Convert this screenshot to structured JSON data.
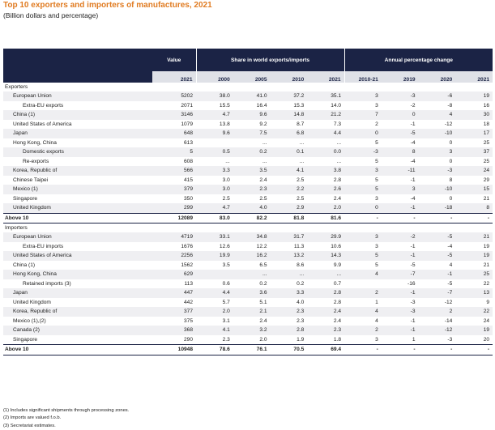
{
  "title": "Top 10 exporters and importers of manufactures, 2021",
  "subtitle": "(Billion dollars and percentage)",
  "header": {
    "value": "Value",
    "share": "Share in world exports/imports",
    "change": "Annual percentage change",
    "years": [
      "2021",
      "2000",
      "2005",
      "2010",
      "2021",
      "2010-21",
      "2019",
      "2020",
      "2021"
    ]
  },
  "sections": [
    {
      "title": "Exporters",
      "rows": [
        {
          "label": "European Union",
          "indent": 1,
          "cells": [
            "5202",
            "38.0",
            "41.0",
            "37.2",
            "35.1",
            "3",
            "-3",
            "-6",
            "19"
          ]
        },
        {
          "label": "Extra-EU exports",
          "indent": 2,
          "cells": [
            "2071",
            "15.5",
            "16.4",
            "15.3",
            "14.0",
            "3",
            "-2",
            "-8",
            "16"
          ]
        },
        {
          "label": "China (1)",
          "indent": 1,
          "cells": [
            "3146",
            "4.7",
            "9.6",
            "14.8",
            "21.2",
            "7",
            "0",
            "4",
            "30"
          ]
        },
        {
          "label": "United States of America",
          "indent": 1,
          "cells": [
            "1079",
            "13.8",
            "9.2",
            "8.7",
            "7.3",
            "2",
            "-1",
            "-12",
            "18"
          ]
        },
        {
          "label": "Japan",
          "indent": 1,
          "cells": [
            "648",
            "9.6",
            "7.5",
            "6.8",
            "4.4",
            "0",
            "-5",
            "-10",
            "17"
          ]
        },
        {
          "label": "Hong Kong, China",
          "indent": 1,
          "cells": [
            "613",
            "",
            "...",
            "...",
            "...",
            "5",
            "-4",
            "0",
            "25"
          ]
        },
        {
          "label": "Domestic exports",
          "indent": 2,
          "cells": [
            "5",
            "0.5",
            "0.2",
            "0.1",
            "0.0",
            "-3",
            "8",
            "3",
            "37"
          ]
        },
        {
          "label": "Re-exports",
          "indent": 2,
          "cells": [
            "608",
            "...",
            "...",
            "...",
            "...",
            "5",
            "-4",
            "0",
            "25"
          ]
        },
        {
          "label": "Korea, Republic of",
          "indent": 1,
          "cells": [
            "566",
            "3.3",
            "3.5",
            "4.1",
            "3.8",
            "3",
            "-11",
            "-3",
            "24"
          ]
        },
        {
          "label": "Chinese Taipei",
          "indent": 1,
          "cells": [
            "415",
            "3.0",
            "2.4",
            "2.5",
            "2.8",
            "5",
            "-1",
            "8",
            "29"
          ]
        },
        {
          "label": "Mexico (1)",
          "indent": 1,
          "cells": [
            "379",
            "3.0",
            "2.3",
            "2.2",
            "2.6",
            "5",
            "3",
            "-10",
            "15"
          ]
        },
        {
          "label": "Singapore",
          "indent": 1,
          "cells": [
            "350",
            "2.5",
            "2.5",
            "2.5",
            "2.4",
            "3",
            "-4",
            "0",
            "21"
          ]
        },
        {
          "label": "United Kingdom",
          "indent": 1,
          "cells": [
            "299",
            "4.7",
            "4.0",
            "2.9",
            "2.0",
            "0",
            "-1",
            "-18",
            "8"
          ]
        }
      ],
      "total": {
        "label": "Above 10",
        "cells": [
          "12089",
          "83.0",
          "82.2",
          "81.8",
          "81.6",
          "-",
          "-",
          "-",
          "-"
        ]
      }
    },
    {
      "title": "Importers",
      "rows": [
        {
          "label": "European Union",
          "indent": 1,
          "cells": [
            "4719",
            "33.1",
            "34.8",
            "31.7",
            "29.9",
            "3",
            "-2",
            "-5",
            "21"
          ]
        },
        {
          "label": "Extra-EU imports",
          "indent": 2,
          "cells": [
            "1676",
            "12.6",
            "12.2",
            "11.3",
            "10.6",
            "3",
            "-1",
            "-4",
            "19"
          ]
        },
        {
          "label": "United States of America",
          "indent": 1,
          "cells": [
            "2256",
            "19.9",
            "16.2",
            "13.2",
            "14.3",
            "5",
            "-1",
            "-5",
            "19"
          ]
        },
        {
          "label": "China (1)",
          "indent": 1,
          "cells": [
            "1562",
            "3.5",
            "6.5",
            "8.6",
            "9.9",
            "5",
            "-5",
            "4",
            "21"
          ]
        },
        {
          "label": "Hong Kong, China",
          "indent": 1,
          "cells": [
            "629",
            "",
            "...",
            "...",
            "...",
            "4",
            "-7",
            "-1",
            "25"
          ]
        },
        {
          "label": "Retained imports (3)",
          "indent": 2,
          "cells": [
            "113",
            "0.6",
            "0.2",
            "0.2",
            "0.7",
            "",
            "-16",
            "-5",
            "22"
          ]
        },
        {
          "label": "Japan",
          "indent": 1,
          "cells": [
            "447",
            "4.4",
            "3.6",
            "3.3",
            "2.8",
            "2",
            "-1",
            "-7",
            "13"
          ]
        },
        {
          "label": "United Kingdom",
          "indent": 1,
          "cells": [
            "442",
            "5.7",
            "5.1",
            "4.0",
            "2.8",
            "1",
            "-3",
            "-12",
            "9"
          ]
        },
        {
          "label": "Korea, Republic of",
          "indent": 1,
          "cells": [
            "377",
            "2.0",
            "2.1",
            "2.3",
            "2.4",
            "4",
            "-3",
            "2",
            "22"
          ]
        },
        {
          "label": "Mexico (1),(2)",
          "indent": 1,
          "cells": [
            "375",
            "3.1",
            "2.4",
            "2.3",
            "2.4",
            "4",
            "-1",
            "-14",
            "24"
          ]
        },
        {
          "label": "Canada (2)",
          "indent": 1,
          "cells": [
            "368",
            "4.1",
            "3.2",
            "2.8",
            "2.3",
            "2",
            "-1",
            "-12",
            "19"
          ]
        },
        {
          "label": "Singapore",
          "indent": 1,
          "cells": [
            "290",
            "2.3",
            "2.0",
            "1.9",
            "1.8",
            "3",
            "1",
            "-3",
            "20"
          ]
        }
      ],
      "total": {
        "label": "Above 10",
        "cells": [
          "10948",
          "78.6",
          "76.1",
          "70.5",
          "69.4",
          "-",
          "-",
          "-",
          "-"
        ]
      }
    }
  ],
  "notes": [
    "(1) Includes significant shipments through processing zones.",
    "(2) Imports are valued f.o.b.",
    "(3) Secretariat estimates."
  ]
}
